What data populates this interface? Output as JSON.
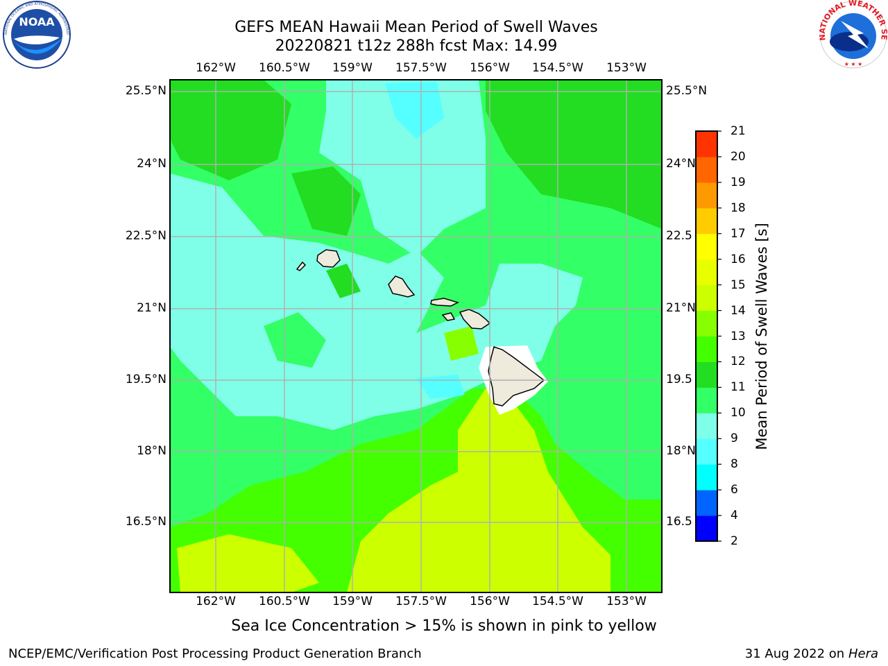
{
  "title_line1": "GEFS MEAN Hawaii Mean Period of Swell Waves",
  "title_line2": "20220821 t12z 288h fcst   Max: 14.99",
  "lon_labels": [
    "162°W",
    "160.5°W",
    "159°W",
    "157.5°W",
    "156°W",
    "154.5°W",
    "153°W"
  ],
  "lat_labels": [
    "25.5°N",
    "24°N",
    "22.5°N",
    "21°N",
    "19.5°N",
    "18°N",
    "16.5°N"
  ],
  "lat_labels_right": [
    "25.5°N",
    "24°N",
    "22.5",
    "21°N",
    "19.5",
    "18°N",
    "16.5"
  ],
  "colorbar": {
    "label": "Mean Period of Swell Waves [s]",
    "ticks": [
      "2",
      "4",
      "6",
      "8",
      "9",
      "10",
      "11",
      "12",
      "13",
      "14",
      "15",
      "16",
      "17",
      "18",
      "19",
      "20",
      "21"
    ],
    "colors": [
      "#0000ff",
      "#0064ff",
      "#00ffff",
      "#55ffff",
      "#80ffe8",
      "#33ff66",
      "#22dd22",
      "#44ff00",
      "#88ff00",
      "#ccff00",
      "#e8ff00",
      "#ffff00",
      "#ffcc00",
      "#ff9900",
      "#ff6600",
      "#ff3300",
      "#ff0000"
    ]
  },
  "subtitle": "Sea Ice Concentration > 15% is shown in pink to yellow",
  "footer_left": "NCEP/EMC/Verification Post Processing Product Generation Branch",
  "footer_date": "31 Aug 2022 on",
  "footer_host": "Hera",
  "logo_noaa": {
    "text": "NOAA",
    "ring": "NATIONAL OCEANIC AND ATMOSPHERIC ADMINISTRATION · U.S. DEPARTMENT OF COMMERCE"
  },
  "logo_nws": {
    "ring": "NATIONAL WEATHER SERVICE"
  },
  "map_colors": {
    "cyan": "#80ffe8",
    "lightcyan": "#55ffff",
    "green": "#33ff66",
    "darkgreen": "#22dd22",
    "lime": "#44ff00",
    "yellowgreen": "#ccff00",
    "land": "#eeeadc",
    "grid": "#b0b0b0"
  }
}
